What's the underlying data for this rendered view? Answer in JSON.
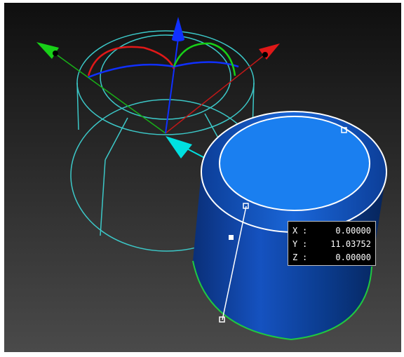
{
  "viewport": {
    "colors": {
      "background_top": "#0f0f0f",
      "background_bottom": "#4a4a4a",
      "wireframe": "#3cc8c8",
      "solid_body": "#0a3a8a",
      "solid_top": "#1a7ff0",
      "x_axis": "#e01818",
      "y_axis": "#18d018",
      "z_axis": "#1030ff",
      "pointer": "#00e0e0",
      "outline": "#ffffff",
      "base_edge": "#20c840"
    },
    "icons": [
      "x-axis-arrow-icon",
      "y-axis-arrow-icon",
      "z-axis-arrow-icon",
      "drag-pointer-icon"
    ]
  },
  "coords": [
    {
      "axis": "X",
      "sep": ":",
      "value": "0.00000"
    },
    {
      "axis": "Y",
      "sep": ":",
      "value": "11.03752"
    },
    {
      "axis": "Z",
      "sep": ":",
      "value": "0.00000"
    }
  ]
}
